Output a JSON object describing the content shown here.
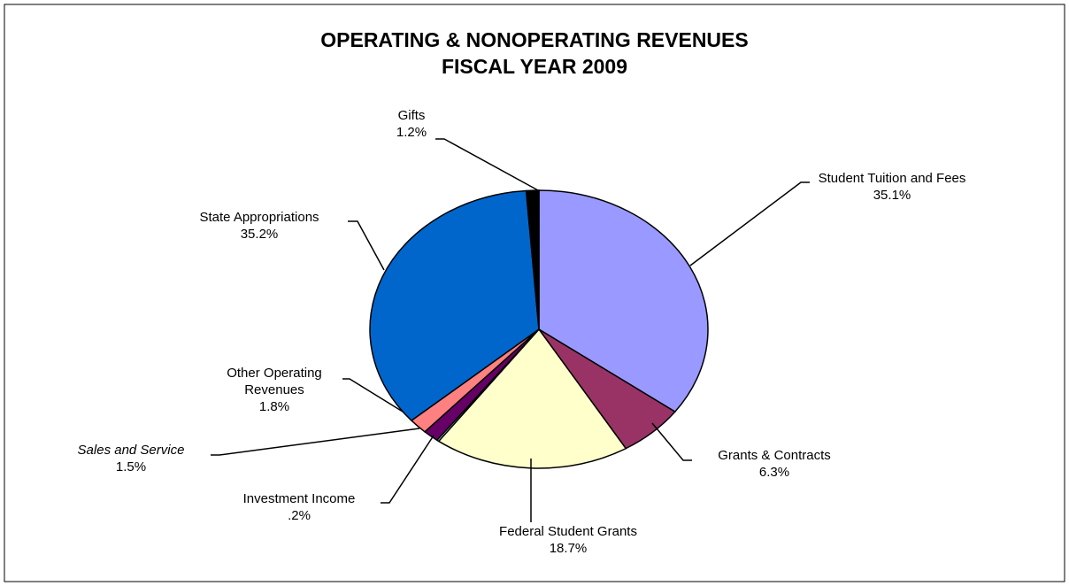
{
  "chart_data": {
    "type": "pie",
    "title": "OPERATING & NONOPERATING REVENUES\nFISCAL YEAR 2009",
    "categories": [
      "Student Tuition and Fees",
      "Grants & Contracts",
      "Federal Student Grants",
      "Investment Income",
      "Sales and Service",
      "Other Operating Revenues",
      "State Appropriations",
      "Gifts"
    ],
    "values": [
      35.1,
      6.3,
      18.7,
      0.2,
      1.5,
      1.8,
      35.2,
      1.2
    ],
    "value_labels": [
      "35.1%",
      "6.3%",
      "18.7%",
      ".2%",
      "1.5%",
      "1.8%",
      "35.2%",
      "1.2%"
    ],
    "colors": [
      "#9999ff",
      "#993366",
      "#ffffcc",
      "#ccffff",
      "#660066",
      "#ff8080",
      "#0066cc",
      "#000000"
    ]
  }
}
